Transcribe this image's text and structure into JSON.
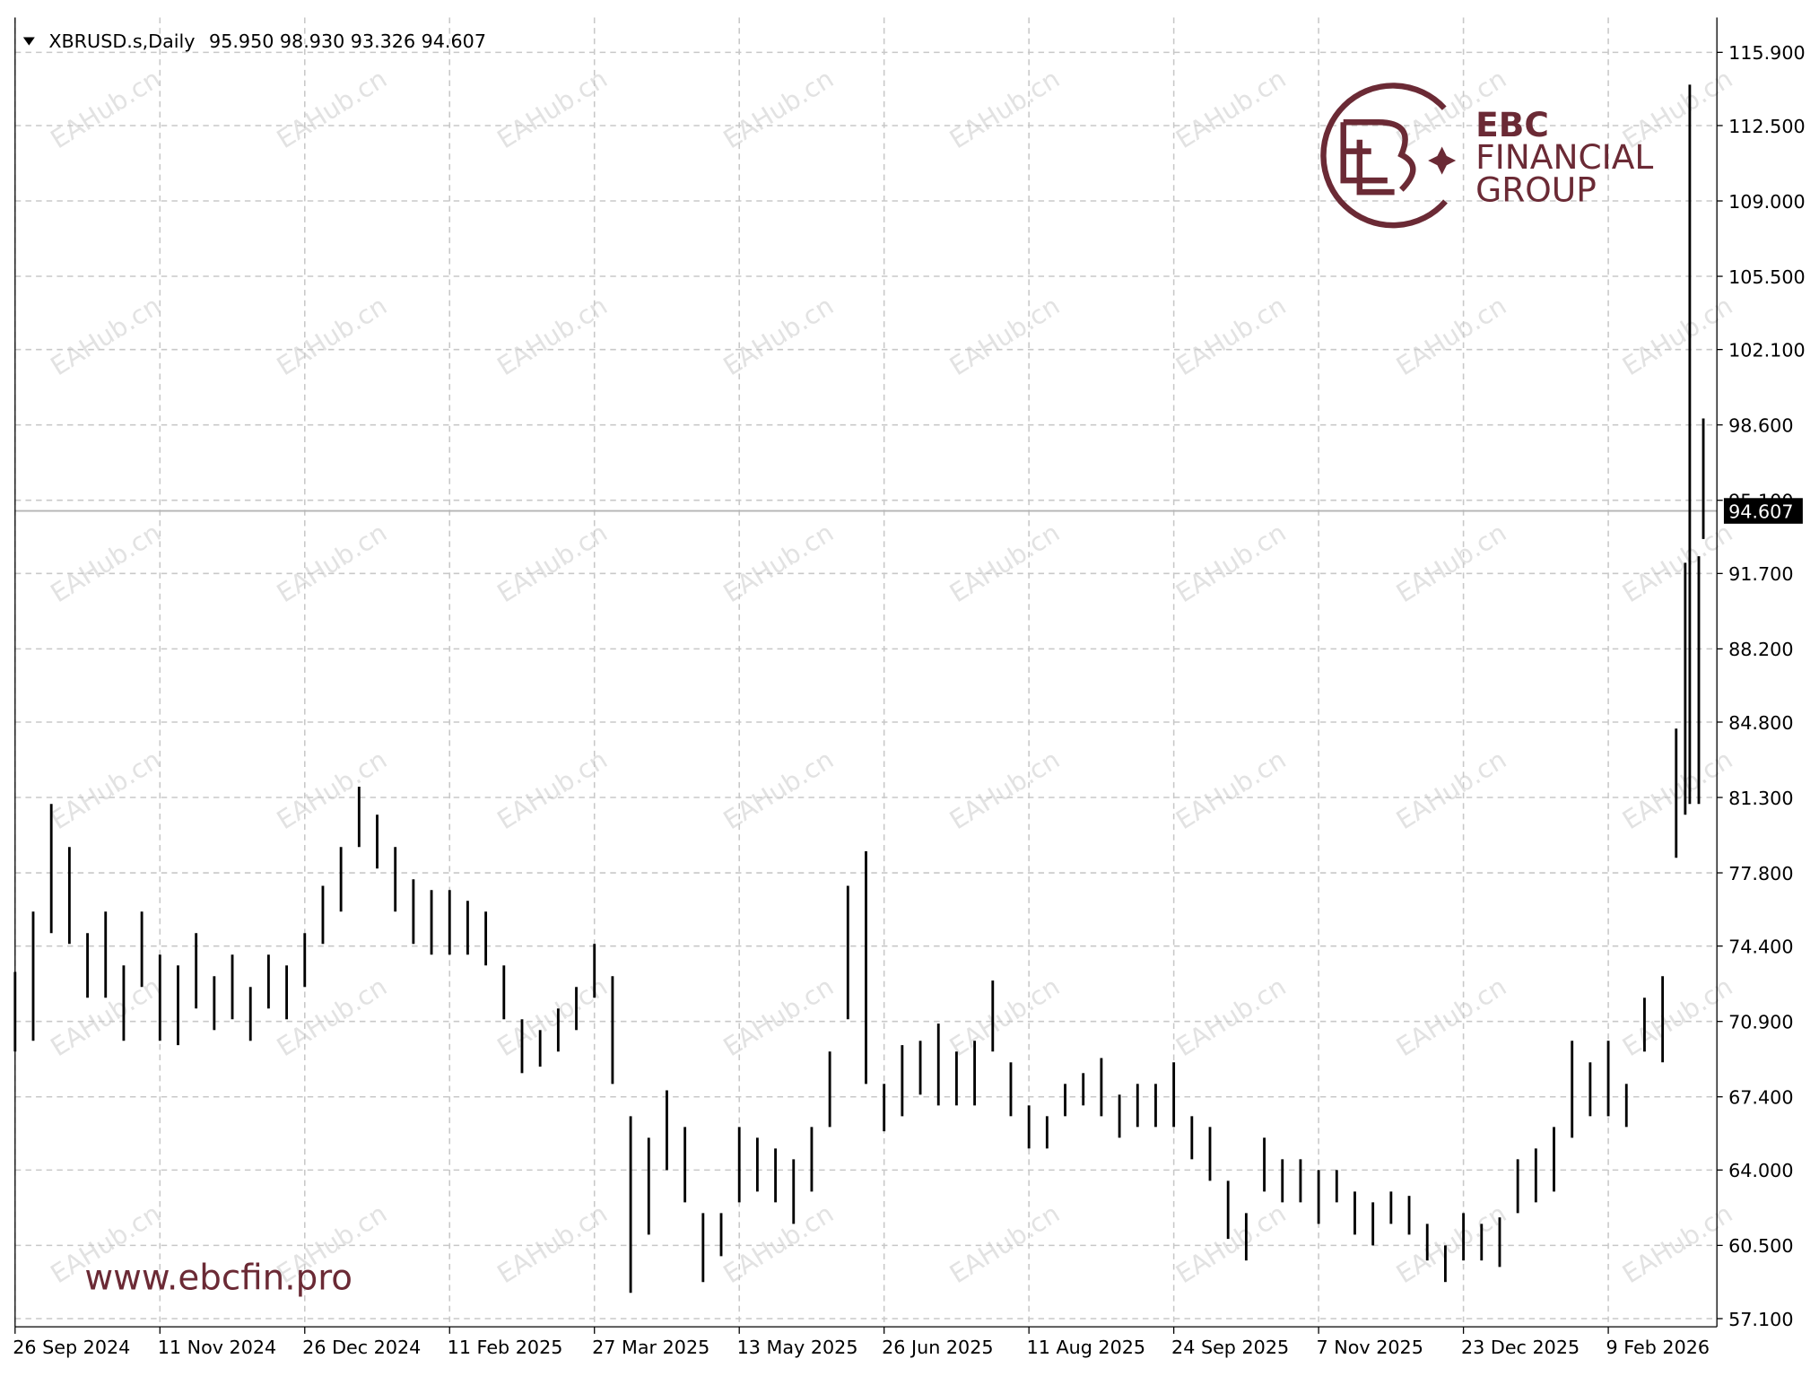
{
  "chart_data": {
    "type": "ohlc",
    "title": "XBRUSD.s,Daily",
    "header_values": [
      "95.950",
      "98.930",
      "93.326",
      "94.607"
    ],
    "color": "#000000",
    "grid": true,
    "x": [
      0,
      4,
      8,
      12,
      16,
      20,
      24,
      28,
      32,
      36,
      40,
      44,
      48,
      52,
      56,
      60,
      64,
      68,
      72,
      76,
      80,
      84,
      88,
      92,
      96,
      100,
      104,
      108,
      112,
      116,
      120,
      124,
      128,
      132,
      136,
      140,
      144,
      148,
      152,
      156,
      160,
      164,
      168,
      172,
      176,
      180,
      184,
      188,
      192,
      196,
      200,
      204,
      208,
      212,
      216,
      220,
      224,
      228,
      232,
      236,
      240,
      244,
      248,
      252,
      256,
      260,
      264,
      268,
      272,
      276,
      280,
      284,
      288,
      292,
      296,
      300,
      304,
      308,
      312,
      316,
      320,
      324,
      328,
      332,
      336,
      340,
      344,
      348,
      352,
      356,
      360,
      364,
      367,
      369,
      370,
      372,
      373
    ],
    "high": [
      73.2,
      76,
      81,
      79,
      75,
      76,
      73.5,
      76,
      74,
      73.5,
      75,
      73,
      74,
      72.5,
      74,
      73.5,
      75,
      77.2,
      79,
      81.8,
      80.5,
      79,
      77.5,
      77,
      77,
      76.5,
      76,
      73.5,
      71,
      70.5,
      71.5,
      72.5,
      74.5,
      73,
      66.5,
      65.5,
      67.7,
      66,
      62,
      62,
      66,
      65.5,
      65,
      64.5,
      66,
      69.5,
      77.2,
      78.8,
      68,
      69.8,
      70,
      70.8,
      69.5,
      70,
      72.8,
      69,
      67,
      66.5,
      68,
      68.5,
      69.2,
      67.5,
      68,
      68,
      69,
      66.5,
      66,
      63.5,
      62,
      65.5,
      64.5,
      64.5,
      64,
      64,
      63,
      62.5,
      63,
      62.8,
      61.5,
      60.5,
      62,
      61.5,
      61.8,
      64.5,
      65,
      66,
      70,
      69,
      70,
      68,
      72,
      73,
      84.5,
      92.2,
      114.4,
      92.5,
      98.9
    ],
    "low": [
      69.5,
      70,
      75,
      74.5,
      72,
      72,
      70,
      72.5,
      70,
      69.8,
      71.5,
      70.5,
      71,
      70,
      71.5,
      71,
      72.5,
      74.5,
      76,
      79,
      78,
      76,
      74.5,
      74,
      74,
      74,
      73.5,
      71,
      68.5,
      68.8,
      69.5,
      70.5,
      72,
      68,
      58.3,
      61,
      64,
      62.5,
      58.8,
      60,
      62.5,
      63,
      62.5,
      61.5,
      63,
      66,
      71,
      68,
      65.8,
      66.5,
      67.5,
      67,
      67,
      67,
      69.5,
      66.5,
      65,
      65,
      66.5,
      67,
      66.5,
      65.5,
      66,
      66,
      66,
      64.5,
      63.5,
      60.8,
      59.8,
      63,
      62.5,
      62.5,
      61.5,
      62.5,
      61,
      60.5,
      61.5,
      61,
      59.8,
      58.8,
      59.8,
      59.8,
      59.5,
      62,
      62.5,
      63,
      65.5,
      66.5,
      66.5,
      66,
      69.5,
      69,
      78.5,
      80.5,
      81,
      81,
      93.3
    ],
    "xlim": [
      0,
      376
    ],
    "xticks": [
      {
        "value": 0,
        "label": "26 Sep 2024"
      },
      {
        "value": 32,
        "label": "11 Nov 2024"
      },
      {
        "value": 64,
        "label": "26 Dec 2024"
      },
      {
        "value": 96,
        "label": "11 Feb 2025"
      },
      {
        "value": 128,
        "label": "27 Mar 2025"
      },
      {
        "value": 160,
        "label": "13 May 2025"
      },
      {
        "value": 192,
        "label": "26 Jun 2025"
      },
      {
        "value": 224,
        "label": "11 Aug 2025"
      },
      {
        "value": 256,
        "label": "24 Sep 2025"
      },
      {
        "value": 288,
        "label": "7 Nov 2025"
      },
      {
        "value": 320,
        "label": "23 Dec 2025"
      },
      {
        "value": 352,
        "label": "9 Feb 2026"
      }
    ],
    "ylim": [
      56.72,
      117.52
    ],
    "yticks": [
      {
        "value": 57.1,
        "label": "57.100"
      },
      {
        "value": 60.5,
        "label": "60.500"
      },
      {
        "value": 64,
        "label": "64.000"
      },
      {
        "value": 67.4,
        "label": "67.400"
      },
      {
        "value": 70.9,
        "label": "70.900"
      },
      {
        "value": 74.4,
        "label": "74.400"
      },
      {
        "value": 77.8,
        "label": "77.800"
      },
      {
        "value": 81.3,
        "label": "81.300"
      },
      {
        "value": 84.8,
        "label": "84.800"
      },
      {
        "value": 88.2,
        "label": "88.200"
      },
      {
        "value": 91.7,
        "label": "91.700"
      },
      {
        "value": 95.1,
        "label": "95.100"
      },
      {
        "value": 98.6,
        "label": "98.600"
      },
      {
        "value": 102.1,
        "label": "102.100"
      },
      {
        "value": 105.5,
        "label": "105.500"
      },
      {
        "value": 109,
        "label": "109.000"
      },
      {
        "value": 112.5,
        "label": "112.500"
      },
      {
        "value": 115.9,
        "label": "115.900"
      }
    ],
    "last_price": {
      "value": 94.607,
      "label": "94.607"
    }
  },
  "watermark": "EAHub.cn",
  "logo": {
    "line1": "EBC",
    "line2": "FINANCIAL",
    "line3": "GROUP"
  },
  "url": "www.ebcfin.pro"
}
